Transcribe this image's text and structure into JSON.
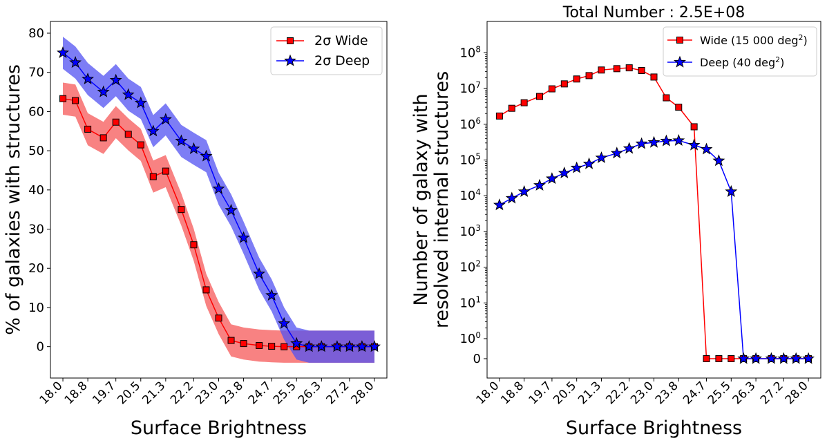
{
  "chart_data": [
    {
      "type": "line",
      "title": "",
      "xlabel": "Surface Brightness",
      "ylabel": "% of galaxies with structures",
      "ylim": [
        -8,
        83
      ],
      "y_ticks": [
        0,
        10,
        20,
        30,
        40,
        50,
        60,
        70,
        80
      ],
      "x": [
        18.0,
        18.4,
        18.8,
        19.3,
        19.7,
        20.1,
        20.5,
        20.9,
        21.3,
        21.8,
        22.2,
        22.6,
        23.0,
        23.4,
        23.8,
        24.3,
        24.7,
        25.1,
        25.5,
        25.9,
        26.3,
        26.8,
        27.2,
        27.6,
        28.0
      ],
      "x_tick_labels": [
        "18.0",
        "18.8",
        "19.7",
        "20.5",
        "21.3",
        "22.2",
        "23.0",
        "23.8",
        "24.7",
        "25.5",
        "26.3",
        "27.2",
        "28.0"
      ],
      "legend": "top-right",
      "grid": false,
      "series": [
        {
          "name": "2σ Wide",
          "color": "#ff0000",
          "band_color": "#f55858",
          "marker": "square",
          "values": [
            63.3,
            62.8,
            55.5,
            53.3,
            57.3,
            54.2,
            51.5,
            43.4,
            44.8,
            35.0,
            26.0,
            14.5,
            7.3,
            1.6,
            0.8,
            0.3,
            0.1,
            0.0,
            0.0,
            0.0,
            0.0,
            0.0,
            0.0,
            0.0,
            0.0
          ],
          "band_upper": [
            67.4,
            66.9,
            59.6,
            57.4,
            61.4,
            58.3,
            55.6,
            47.5,
            48.9,
            39.1,
            30.1,
            18.6,
            11.4,
            5.7,
            4.9,
            4.4,
            4.2,
            4.1,
            4.1,
            4.1,
            4.1,
            4.1,
            4.1,
            4.1,
            4.1
          ],
          "band_lower": [
            59.2,
            58.7,
            51.4,
            49.2,
            53.2,
            50.1,
            47.4,
            39.3,
            40.7,
            30.9,
            21.9,
            10.4,
            3.2,
            -2.5,
            -3.3,
            -3.8,
            -4.0,
            -4.1,
            -4.1,
            -4.1,
            -4.1,
            -4.1,
            -4.1,
            -4.1,
            -4.1
          ]
        },
        {
          "name": "2σ Deep",
          "color": "#0000ff",
          "band_color": "#5151f2",
          "marker": "star",
          "values": [
            75.0,
            72.5,
            68.3,
            65.0,
            68.0,
            64.3,
            62.2,
            55.0,
            58.0,
            52.5,
            50.5,
            48.6,
            40.3,
            34.8,
            27.8,
            18.6,
            13.1,
            5.9,
            0.8,
            0.0,
            0.0,
            0.0,
            0.0,
            0.0,
            0.0
          ],
          "band_upper": [
            79.1,
            76.6,
            72.4,
            69.1,
            72.1,
            68.4,
            66.3,
            59.1,
            62.1,
            56.6,
            54.6,
            52.7,
            44.4,
            38.9,
            31.9,
            22.7,
            17.2,
            10.0,
            4.9,
            4.1,
            4.1,
            4.1,
            4.1,
            4.1,
            4.1
          ],
          "band_lower": [
            70.9,
            68.4,
            64.2,
            60.9,
            63.9,
            60.2,
            58.1,
            50.9,
            53.9,
            48.4,
            46.4,
            44.5,
            36.2,
            30.7,
            23.7,
            14.5,
            9.0,
            1.8,
            -3.3,
            -4.1,
            -4.1,
            -4.1,
            -4.1,
            -4.1,
            -4.1
          ]
        }
      ]
    },
    {
      "type": "line",
      "title": "Total Number : 2.5E+08",
      "xlabel": "Surface Brightness",
      "ylabel_lines": [
        "Number of galaxy with",
        "resolved internal structures"
      ],
      "yscale": "symlog",
      "y_ticks": [
        {
          "base": "0",
          "exp": ""
        },
        {
          "base": "10",
          "exp": "0"
        },
        {
          "base": "10",
          "exp": "1"
        },
        {
          "base": "10",
          "exp": "2"
        },
        {
          "base": "10",
          "exp": "3"
        },
        {
          "base": "10",
          "exp": "4"
        },
        {
          "base": "10",
          "exp": "5"
        },
        {
          "base": "10",
          "exp": "6"
        },
        {
          "base": "10",
          "exp": "7"
        },
        {
          "base": "10",
          "exp": "8"
        }
      ],
      "x": [
        18.0,
        18.4,
        18.8,
        19.3,
        19.7,
        20.1,
        20.5,
        20.9,
        21.3,
        21.8,
        22.2,
        22.6,
        23.0,
        23.4,
        23.8,
        24.3,
        24.7,
        25.1,
        25.5,
        25.9,
        26.3,
        26.8,
        27.2,
        27.6,
        28.0
      ],
      "x_tick_labels": [
        "18.0",
        "18.8",
        "19.7",
        "20.5",
        "21.3",
        "22.2",
        "23.0",
        "23.8",
        "24.7",
        "25.5",
        "26.3",
        "27.2",
        "28.0"
      ],
      "legend": "top-right",
      "grid": false,
      "series": [
        {
          "name": "Wide (15 000 deg²)",
          "name_main": "Wide (15 000 deg",
          "name_sup": "2",
          "name_end": ")",
          "color": "#ff0000",
          "marker": "square",
          "values": [
            1700000,
            2800000,
            4000000,
            6000000,
            9800000,
            13500000,
            18500000,
            23000000,
            33000000,
            36000000,
            38000000,
            32000000,
            21000000,
            5500000,
            3000000,
            850000,
            0,
            0,
            0,
            0,
            0,
            0,
            0,
            0,
            0
          ]
        },
        {
          "name": "Deep (40 deg²)",
          "name_main": "Deep (40 deg",
          "name_sup": "2",
          "name_end": ")",
          "color": "#0000ff",
          "marker": "star",
          "values": [
            5500,
            8500,
            13000,
            19500,
            30000,
            43000,
            60000,
            78000,
            115000,
            155000,
            210000,
            285000,
            310000,
            340000,
            350000,
            260000,
            200000,
            95000,
            13000,
            0,
            0,
            0,
            0,
            0,
            0
          ]
        }
      ]
    }
  ]
}
